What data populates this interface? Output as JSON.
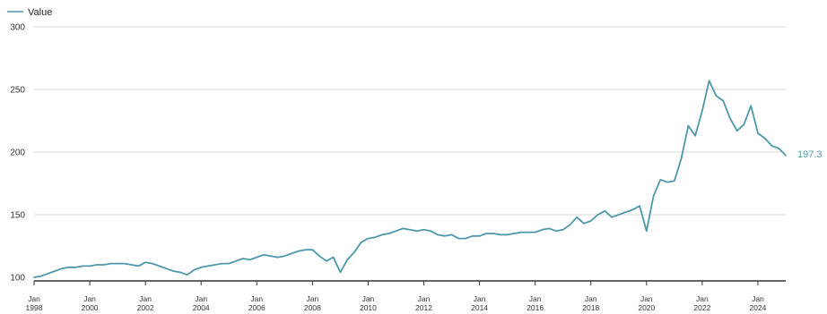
{
  "chart_data": {
    "type": "line",
    "title": "",
    "xlabel": "",
    "ylabel": "",
    "ylim": [
      100,
      300
    ],
    "xlim": [
      "1998-01",
      "2024-06"
    ],
    "grid": "horizontal",
    "legend": {
      "position": "top-left",
      "entries": [
        "Value"
      ]
    },
    "colors": {
      "series": "#4d97ab",
      "grid": "#d9d9d9",
      "axis": "#333333"
    },
    "y_ticks": [
      {
        "value": 100,
        "label": "100"
      },
      {
        "value": 150,
        "label": "150"
      },
      {
        "value": 200,
        "label": "200"
      },
      {
        "value": 250,
        "label": "250"
      },
      {
        "value": 300,
        "label": "300"
      }
    ],
    "x_ticks": [
      {
        "x": "1998-01",
        "label": [
          "Jan",
          "1998"
        ]
      },
      {
        "x": "2000-01",
        "label": [
          "Jan",
          "2000"
        ]
      },
      {
        "x": "2002-01",
        "label": [
          "Jan",
          "2002"
        ]
      },
      {
        "x": "2004-01",
        "label": [
          "Jan",
          "2004"
        ]
      },
      {
        "x": "2006-01",
        "label": [
          "Jan",
          "2006"
        ]
      },
      {
        "x": "2008-01",
        "label": [
          "Jan",
          "2008"
        ]
      },
      {
        "x": "2010-01",
        "label": [
          "Jan",
          "2010"
        ]
      },
      {
        "x": "2012-01",
        "label": [
          "Jan",
          "2012"
        ]
      },
      {
        "x": "2014-01",
        "label": [
          "Jan",
          "2014"
        ]
      },
      {
        "x": "2016-01",
        "label": [
          "Jan",
          "2016"
        ]
      },
      {
        "x": "2018-01",
        "label": [
          "Jan",
          "2018"
        ]
      },
      {
        "x": "2020-01",
        "label": [
          "Jan",
          "2020"
        ]
      },
      {
        "x": "2022-01",
        "label": [
          "Jan",
          "2022"
        ]
      },
      {
        "x": "2024-01",
        "label": [
          "Jan",
          "2024"
        ]
      }
    ],
    "end_label": "197.3",
    "series": [
      {
        "name": "Value",
        "points": [
          [
            "1998-01",
            100
          ],
          [
            "1998-04",
            101
          ],
          [
            "1998-07",
            103
          ],
          [
            "1998-10",
            105
          ],
          [
            "1999-01",
            107
          ],
          [
            "1999-04",
            108
          ],
          [
            "1999-07",
            108
          ],
          [
            "1999-10",
            109
          ],
          [
            "2000-01",
            109
          ],
          [
            "2000-04",
            110
          ],
          [
            "2000-07",
            110
          ],
          [
            "2000-10",
            111
          ],
          [
            "2001-01",
            111
          ],
          [
            "2001-04",
            111
          ],
          [
            "2001-07",
            110
          ],
          [
            "2001-10",
            109
          ],
          [
            "2002-01",
            112
          ],
          [
            "2002-04",
            111
          ],
          [
            "2002-07",
            109
          ],
          [
            "2002-10",
            107
          ],
          [
            "2003-01",
            105
          ],
          [
            "2003-04",
            104
          ],
          [
            "2003-07",
            102
          ],
          [
            "2003-10",
            106
          ],
          [
            "2004-01",
            108
          ],
          [
            "2004-04",
            109
          ],
          [
            "2004-07",
            110
          ],
          [
            "2004-10",
            111
          ],
          [
            "2005-01",
            111
          ],
          [
            "2005-04",
            113
          ],
          [
            "2005-07",
            115
          ],
          [
            "2005-10",
            114
          ],
          [
            "2006-01",
            116
          ],
          [
            "2006-04",
            118
          ],
          [
            "2006-07",
            117
          ],
          [
            "2006-10",
            116
          ],
          [
            "2007-01",
            117
          ],
          [
            "2007-04",
            119
          ],
          [
            "2007-07",
            121
          ],
          [
            "2007-10",
            122
          ],
          [
            "2008-01",
            122
          ],
          [
            "2008-04",
            117
          ],
          [
            "2008-07",
            113
          ],
          [
            "2008-10",
            116
          ],
          [
            "2009-01",
            104
          ],
          [
            "2009-04",
            114
          ],
          [
            "2009-07",
            120
          ],
          [
            "2009-10",
            128
          ],
          [
            "2010-01",
            131
          ],
          [
            "2010-04",
            132
          ],
          [
            "2010-07",
            134
          ],
          [
            "2010-10",
            135
          ],
          [
            "2011-01",
            137
          ],
          [
            "2011-04",
            139
          ],
          [
            "2011-07",
            138
          ],
          [
            "2011-10",
            137
          ],
          [
            "2012-01",
            138
          ],
          [
            "2012-04",
            137
          ],
          [
            "2012-07",
            134
          ],
          [
            "2012-10",
            133
          ],
          [
            "2013-01",
            134
          ],
          [
            "2013-04",
            131
          ],
          [
            "2013-07",
            131
          ],
          [
            "2013-10",
            133
          ],
          [
            "2014-01",
            133
          ],
          [
            "2014-04",
            135
          ],
          [
            "2014-07",
            135
          ],
          [
            "2014-10",
            134
          ],
          [
            "2015-01",
            134
          ],
          [
            "2015-04",
            135
          ],
          [
            "2015-07",
            136
          ],
          [
            "2015-10",
            136
          ],
          [
            "2016-01",
            136
          ],
          [
            "2016-04",
            138
          ],
          [
            "2016-07",
            139
          ],
          [
            "2016-10",
            137
          ],
          [
            "2017-01",
            138
          ],
          [
            "2017-04",
            142
          ],
          [
            "2017-07",
            148
          ],
          [
            "2017-10",
            143
          ],
          [
            "2018-01",
            145
          ],
          [
            "2018-04",
            150
          ],
          [
            "2018-07",
            153
          ],
          [
            "2018-10",
            148
          ],
          [
            "2019-01",
            150
          ],
          [
            "2019-04",
            152
          ],
          [
            "2019-07",
            154
          ],
          [
            "2019-10",
            157
          ],
          [
            "2020-01",
            137
          ],
          [
            "2020-04",
            165
          ],
          [
            "2020-07",
            178
          ],
          [
            "2020-10",
            176
          ],
          [
            "2021-01",
            177
          ],
          [
            "2021-04",
            195
          ],
          [
            "2021-07",
            221
          ],
          [
            "2021-10",
            213
          ],
          [
            "2022-01",
            233
          ],
          [
            "2022-04",
            257
          ],
          [
            "2022-07",
            245
          ],
          [
            "2022-10",
            241
          ],
          [
            "2023-01",
            227
          ],
          [
            "2023-04",
            217
          ],
          [
            "2023-07",
            222
          ],
          [
            "2023-10",
            237
          ],
          [
            "2024-01",
            215
          ],
          [
            "2024-04",
            211
          ],
          [
            "2024-07",
            205
          ],
          [
            "2024-10",
            203
          ],
          [
            "2025-01",
            197.3
          ]
        ]
      }
    ]
  }
}
